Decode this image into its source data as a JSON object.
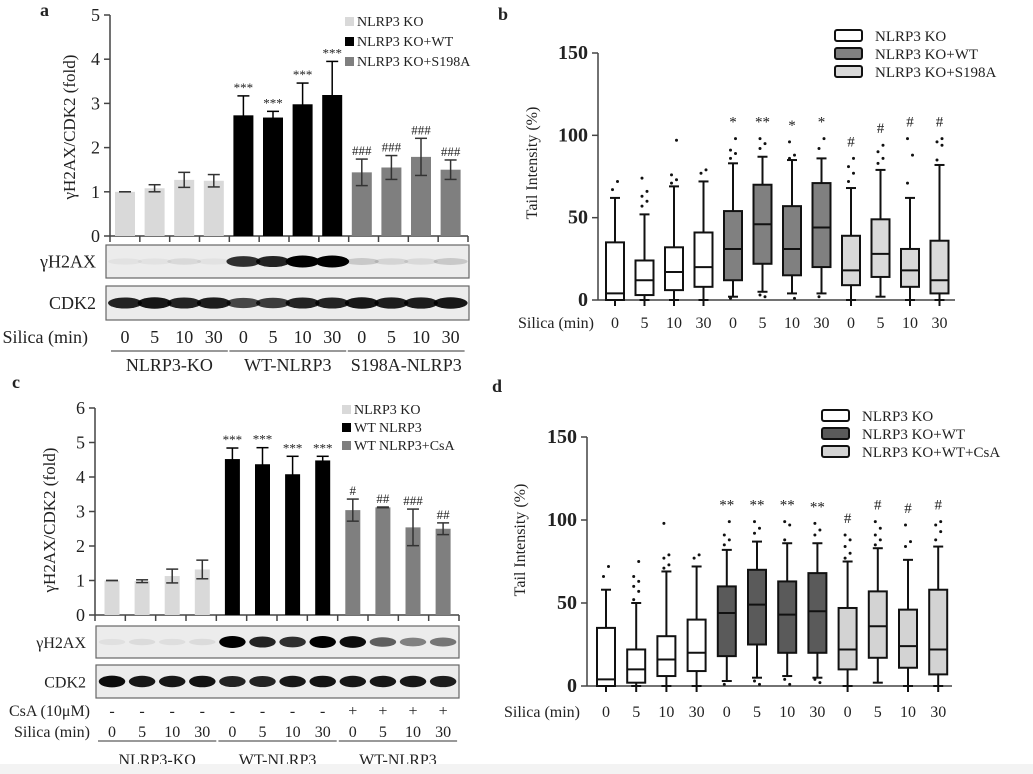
{
  "chart_data": [
    {
      "panel_label": "a",
      "type": "bar",
      "ylabel": "γH2AX/CDK2 (fold)",
      "ylim": [
        0,
        5
      ],
      "yticks": [
        "0",
        "1",
        "2",
        "3",
        "4",
        "5"
      ],
      "xlabel": "Silica (min)",
      "time_points": [
        "0",
        "5",
        "10",
        "30"
      ],
      "series": [
        {
          "name": "NLRP3 KO",
          "color": "#d9d9d9",
          "values": [
            1.0,
            1.08,
            1.27,
            1.25
          ],
          "errors": [
            0,
            0.08,
            0.17,
            0.14
          ],
          "significance": [
            "",
            "",
            "",
            ""
          ]
        },
        {
          "name": "NLRP3 KO+WT",
          "color": "#000000",
          "values": [
            2.73,
            2.68,
            2.98,
            3.19
          ],
          "errors": [
            0.44,
            0.14,
            0.48,
            0.76
          ],
          "significance": [
            "***",
            "***",
            "***",
            "***"
          ]
        },
        {
          "name": "NLRP3 KO+S198A",
          "color": "#7f7f7f",
          "values": [
            1.44,
            1.55,
            1.79,
            1.5
          ],
          "errors": [
            0.3,
            0.27,
            0.42,
            0.22
          ],
          "significance": [
            "###",
            "###",
            "###",
            "###"
          ]
        }
      ],
      "groups": [
        "NLRP3-KO",
        "WT-NLRP3",
        "S198A-NLRP3"
      ],
      "blots": [
        {
          "label": "γH2AX",
          "intensity": [
            0.04,
            0.04,
            0.08,
            0.04,
            0.8,
            0.85,
            1.0,
            1.0,
            0.15,
            0.1,
            0.08,
            0.15
          ]
        },
        {
          "label": "CDK2",
          "intensity": [
            0.85,
            0.9,
            0.85,
            0.88,
            0.7,
            0.75,
            0.85,
            0.85,
            0.9,
            0.88,
            0.88,
            0.9
          ]
        }
      ]
    },
    {
      "panel_label": "b",
      "type": "box",
      "ylabel": "Tail Intensity (%)",
      "ylim": [
        0,
        150
      ],
      "yticks": [
        "0",
        "50",
        "100",
        "150"
      ],
      "xlabel": "Silica (min)",
      "time_points": [
        "0",
        "5",
        "10",
        "30"
      ],
      "series": [
        {
          "name": "NLRP3 KO",
          "color": "#ffffff",
          "boxes": [
            {
              "min": 0,
              "q1": 0,
              "median": 4,
              "q3": 35,
              "max": 62,
              "outliers": [
                67,
                72
              ],
              "sig": ""
            },
            {
              "min": 0,
              "q1": 3,
              "median": 12,
              "q3": 24,
              "max": 52,
              "outliers": [
                57,
                60,
                63,
                66,
                74
              ],
              "sig": ""
            },
            {
              "min": 0,
              "q1": 6,
              "median": 17,
              "q3": 32,
              "max": 69,
              "outliers": [
                71,
                73,
                76,
                97
              ],
              "sig": ""
            },
            {
              "min": 0,
              "q1": 8,
              "median": 20,
              "q3": 41,
              "max": 72,
              "outliers": [
                77,
                79
              ],
              "sig": ""
            }
          ]
        },
        {
          "name": "NLRP3 KO+WT",
          "color": "#808080",
          "boxes": [
            {
              "min": 2,
              "q1": 12,
              "median": 31,
              "q3": 54,
              "max": 83,
              "outliers": [
                86,
                89,
                91,
                98,
                1
              ],
              "sig": "*"
            },
            {
              "min": 5,
              "q1": 22,
              "median": 46,
              "q3": 70,
              "max": 87,
              "outliers": [
                92,
                95,
                98,
                2,
                3
              ],
              "sig": "**"
            },
            {
              "min": 4,
              "q1": 15,
              "median": 31,
              "q3": 57,
              "max": 85,
              "outliers": [
                86,
                88,
                96,
                1
              ],
              "sig": "*"
            },
            {
              "min": 4,
              "q1": 20,
              "median": 44,
              "q3": 71,
              "max": 86,
              "outliers": [
                92,
                98,
                2
              ],
              "sig": "*"
            }
          ]
        },
        {
          "name": "NLRP3 KO+S198A",
          "color": "#d9d9d9",
          "boxes": [
            {
              "min": 0,
              "q1": 9,
              "median": 18,
              "q3": 39,
              "max": 68,
              "outliers": [
                72,
                77,
                81,
                86
              ],
              "sig": "#"
            },
            {
              "min": 2,
              "q1": 14,
              "median": 28,
              "q3": 49,
              "max": 79,
              "outliers": [
                83,
                86,
                90,
                94
              ],
              "sig": "#"
            },
            {
              "min": 0,
              "q1": 8,
              "median": 18,
              "q3": 31,
              "max": 62,
              "outliers": [
                71,
                88,
                98
              ],
              "sig": "#"
            },
            {
              "min": 0,
              "q1": 4,
              "median": 12,
              "q3": 36,
              "max": 82,
              "outliers": [
                85,
                94,
                96,
                98
              ],
              "sig": "#"
            }
          ]
        }
      ]
    },
    {
      "panel_label": "c",
      "type": "bar",
      "ylabel": "γH2AX/CDK2 (fold)",
      "ylim": [
        0,
        6
      ],
      "yticks": [
        "0",
        "1",
        "2",
        "3",
        "4",
        "5",
        "6"
      ],
      "xlabel": "Silica (min)",
      "treatment_label": "CsA (10μM)",
      "treatment": [
        "-",
        "-",
        "-",
        "-",
        "-",
        "-",
        "-",
        "-",
        "+",
        "+",
        "+",
        "+"
      ],
      "time_points": [
        "0",
        "5",
        "10",
        "30"
      ],
      "series": [
        {
          "name": "NLRP3 KO",
          "color": "#d9d9d9",
          "values": [
            1.0,
            0.98,
            1.13,
            1.32
          ],
          "errors": [
            0,
            0.04,
            0.2,
            0.27
          ],
          "significance": [
            "",
            "",
            "",
            ""
          ]
        },
        {
          "name": "WT NLRP3",
          "color": "#000000",
          "values": [
            4.52,
            4.37,
            4.08,
            4.48
          ],
          "errors": [
            0.32,
            0.48,
            0.52,
            0.12
          ],
          "significance": [
            "***",
            "***",
            "***",
            "***"
          ]
        },
        {
          "name": "WT NLRP3+CsA",
          "color": "#7f7f7f",
          "values": [
            3.04,
            3.12,
            2.54,
            2.5
          ],
          "errors": [
            0.32,
            0.01,
            0.53,
            0.17
          ],
          "significance": [
            "#",
            "##",
            "###",
            "##"
          ]
        }
      ],
      "groups": [
        "NLRP3-KO",
        "WT-NLRP3",
        "WT-NLRP3"
      ],
      "blots": [
        {
          "label": "γH2AX",
          "intensity": [
            0.05,
            0.07,
            0.06,
            0.07,
            1.0,
            0.85,
            0.8,
            1.0,
            0.95,
            0.6,
            0.45,
            0.5
          ]
        },
        {
          "label": "CDK2",
          "intensity": [
            0.95,
            0.9,
            0.9,
            0.92,
            0.85,
            0.85,
            0.9,
            0.92,
            0.9,
            0.9,
            0.9,
            0.88
          ]
        }
      ]
    },
    {
      "panel_label": "d",
      "type": "box",
      "ylabel": "Tail Intensity (%)",
      "ylim": [
        0,
        150
      ],
      "yticks": [
        "0",
        "50",
        "100",
        "150"
      ],
      "xlabel": "Silica (min)",
      "time_points": [
        "0",
        "5",
        "10",
        "30"
      ],
      "series": [
        {
          "name": "NLRP3 KO",
          "color": "#ffffff",
          "boxes": [
            {
              "min": 0,
              "q1": 0,
              "median": 4,
              "q3": 35,
              "max": 58,
              "outliers": [
                66,
                72
              ],
              "sig": ""
            },
            {
              "min": 0,
              "q1": 2,
              "median": 10,
              "q3": 22,
              "max": 50,
              "outliers": [
                52,
                57,
                60,
                63,
                66,
                75
              ],
              "sig": ""
            },
            {
              "min": 0,
              "q1": 6,
              "median": 16,
              "q3": 30,
              "max": 69,
              "outliers": [
                71,
                73,
                77,
                79,
                98
              ],
              "sig": ""
            },
            {
              "min": 0,
              "q1": 9,
              "median": 20,
              "q3": 40,
              "max": 72,
              "outliers": [
                77,
                79
              ],
              "sig": ""
            }
          ]
        },
        {
          "name": "NLRP3 KO+WT",
          "color": "#5a5a5a",
          "boxes": [
            {
              "min": 3,
              "q1": 18,
              "median": 44,
              "q3": 60,
              "max": 82,
              "outliers": [
                85,
                88,
                91,
                99,
                1
              ],
              "sig": "**"
            },
            {
              "min": 5,
              "q1": 25,
              "median": 49,
              "q3": 70,
              "max": 87,
              "outliers": [
                92,
                95,
                99,
                1,
                3
              ],
              "sig": "**"
            },
            {
              "min": 6,
              "q1": 20,
              "median": 43,
              "q3": 63,
              "max": 86,
              "outliers": [
                88,
                97,
                99,
                1,
                4
              ],
              "sig": "**"
            },
            {
              "min": 5,
              "q1": 20,
              "median": 45,
              "q3": 68,
              "max": 86,
              "outliers": [
                91,
                94,
                98,
                2,
                4
              ],
              "sig": "**"
            }
          ]
        },
        {
          "name": "NLRP3 KO+WT+CsA",
          "color": "#d3d3d3",
          "boxes": [
            {
              "min": 0,
              "q1": 10,
              "median": 22,
              "q3": 47,
              "max": 75,
              "outliers": [
                77,
                80,
                84,
                88,
                91
              ],
              "sig": "#"
            },
            {
              "min": 2,
              "q1": 17,
              "median": 36,
              "q3": 57,
              "max": 83,
              "outliers": [
                85,
                88,
                91,
                95,
                99
              ],
              "sig": "#"
            },
            {
              "min": 0,
              "q1": 11,
              "median": 24,
              "q3": 46,
              "max": 76,
              "outliers": [
                84,
                87,
                97
              ],
              "sig": "#"
            },
            {
              "min": 0,
              "q1": 7,
              "median": 22,
              "q3": 58,
              "max": 84,
              "outliers": [
                88,
                93,
                97,
                99
              ],
              "sig": "#"
            }
          ]
        }
      ]
    }
  ]
}
